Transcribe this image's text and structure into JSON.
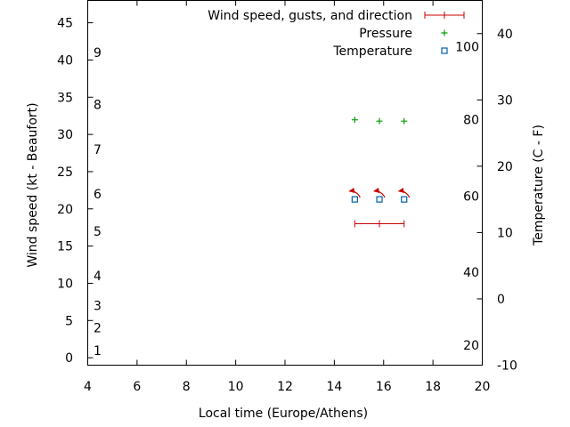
{
  "chart_data": {
    "type": "scatter",
    "xlabel": "Local time (Europe/Athens)",
    "ylabel": "Wind speed (kt - Beaufort)",
    "y2label": "Temperature (C - F)",
    "xlim": [
      4,
      20
    ],
    "ylim": [
      -1,
      48
    ],
    "y2lim": [
      -10,
      45
    ],
    "x_ticks": [
      "4",
      "6",
      "8",
      "10",
      "12",
      "14",
      "16",
      "18",
      "20"
    ],
    "y_ticks": [
      "0",
      "5",
      "10",
      "15",
      "20",
      "25",
      "30",
      "35",
      "40",
      "45"
    ],
    "y2_ticks": [
      "-10",
      "0",
      "10",
      "20",
      "30",
      "40"
    ],
    "beaufort_labels": [
      {
        "label": "1",
        "y": 1
      },
      {
        "label": "2",
        "y": 4
      },
      {
        "label": "3",
        "y": 7
      },
      {
        "label": "4",
        "y": 11
      },
      {
        "label": "5",
        "y": 17
      },
      {
        "label": "6",
        "y": 22
      },
      {
        "label": "7",
        "y": 28
      },
      {
        "label": "8",
        "y": 34
      },
      {
        "label": "9",
        "y": 41
      }
    ],
    "fahrenheit_labels": [
      {
        "label": "20",
        "y2": -7
      },
      {
        "label": "40",
        "y2": 4
      },
      {
        "label": "60",
        "y2": 15.5
      },
      {
        "label": "80",
        "y2": 27
      },
      {
        "label": "100",
        "y2": 38
      }
    ],
    "series": [
      {
        "name": "Wind speed, gusts, and direction",
        "style": "errorbar",
        "color": "#cc0000",
        "x": [
          14.83,
          15.83,
          16.83
        ],
        "y": [
          18,
          18,
          18
        ],
        "direction_arrows_y": [
          22,
          22,
          22
        ]
      },
      {
        "name": "Pressure",
        "style": "plus",
        "color": "#00a000",
        "x": [
          14.83,
          15.83,
          16.83
        ],
        "y2": [
          27,
          26.8,
          26.8
        ]
      },
      {
        "name": "Temperature",
        "style": "square",
        "color": "#0060ad",
        "x": [
          14.83,
          15.83,
          16.83
        ],
        "y2": [
          15,
          15,
          15
        ]
      }
    ],
    "legend_position": "top-right",
    "grid": false
  }
}
